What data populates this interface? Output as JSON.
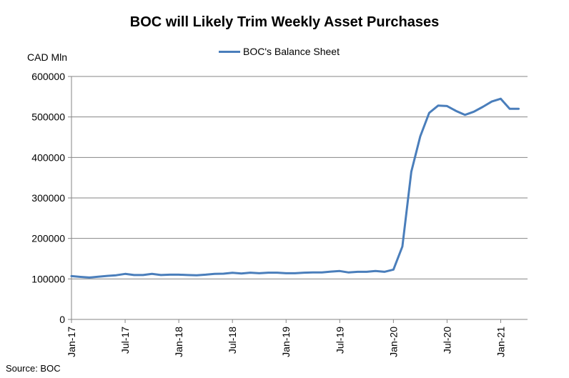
{
  "chart_data": {
    "type": "line",
    "title": "BOC will Likely Trim Weekly Asset Purchases",
    "ylabel": "CAD Mln",
    "xlabel": "",
    "source": "Source: BOC",
    "ylim": [
      0,
      600000
    ],
    "y_ticks": [
      "0",
      "100000",
      "200000",
      "300000",
      "400000",
      "500000",
      "600000"
    ],
    "y_tick_values": [
      0,
      100000,
      200000,
      300000,
      400000,
      500000,
      600000
    ],
    "x_tick_labels": [
      "Jan-17",
      "Jul-17",
      "Jan-18",
      "Jul-18",
      "Jan-19",
      "Jul-19",
      "Jan-20",
      "Jul-20",
      "Jan-21"
    ],
    "x_tick_months": [
      0,
      6,
      12,
      18,
      24,
      30,
      36,
      42,
      48
    ],
    "x_range_months": [
      0,
      51
    ],
    "legend_position": "top-center",
    "grid": true,
    "series": [
      {
        "name": "BOC's Balance Sheet",
        "color": "#4a7ebb",
        "x_months": [
          0,
          1,
          2,
          3,
          4,
          5,
          6,
          7,
          8,
          9,
          10,
          11,
          12,
          13,
          14,
          15,
          16,
          17,
          18,
          19,
          20,
          21,
          22,
          23,
          24,
          25,
          26,
          27,
          28,
          29,
          30,
          31,
          32,
          33,
          34,
          35,
          36,
          37,
          38,
          39,
          40,
          41,
          42,
          43,
          44,
          45,
          46,
          47,
          48,
          49,
          50
        ],
        "values": [
          107000,
          105000,
          103500,
          105500,
          107500,
          109000,
          112500,
          109500,
          109500,
          112500,
          109500,
          110500,
          110500,
          109500,
          109000,
          110500,
          112500,
          113000,
          115000,
          113500,
          115500,
          114000,
          115500,
          115500,
          114000,
          114000,
          115500,
          116000,
          116000,
          118000,
          119500,
          116000,
          117500,
          117500,
          119500,
          117500,
          123000,
          180000,
          365000,
          452000,
          510000,
          528000,
          527000,
          515000,
          505000,
          513000,
          525000,
          538000,
          545000,
          520000,
          520000
        ]
      }
    ]
  }
}
